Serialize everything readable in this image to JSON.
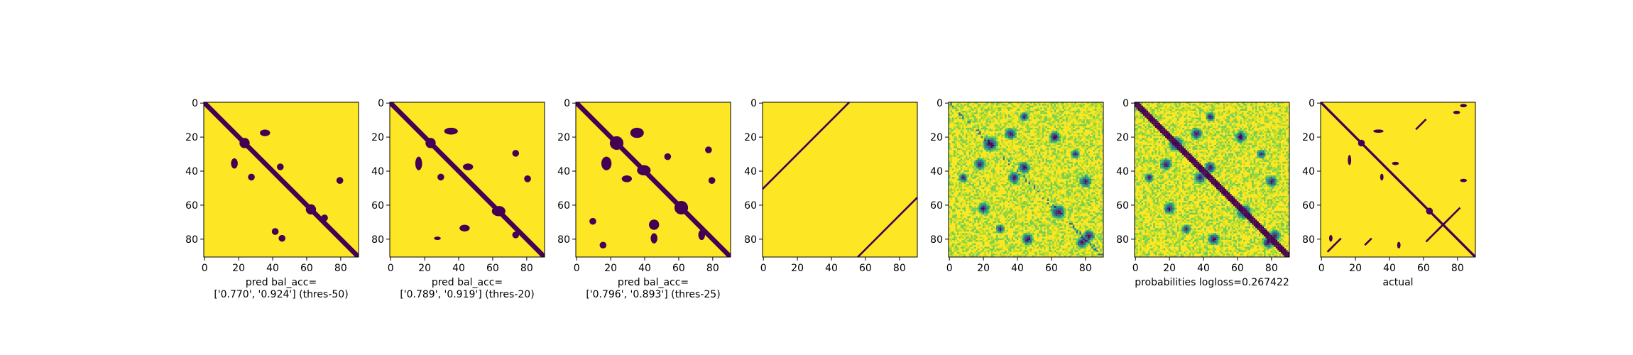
{
  "colors": {
    "background": "#fde725",
    "contact": "#440154",
    "viridis": [
      "#440154",
      "#482878",
      "#3e4989",
      "#31688e",
      "#26828e",
      "#1f9e89",
      "#35b779",
      "#6ece58",
      "#b5de2b",
      "#fde725"
    ]
  },
  "chart_data": [
    {
      "type": "heatmap",
      "variant": "binary_prediction",
      "xlabel": "pred bal_acc=\n['0.770', '0.924'] (thres-50)",
      "xticks": [
        "0",
        "20",
        "40",
        "60",
        "80"
      ],
      "yticks": [
        "0",
        "20",
        "40",
        "60",
        "80"
      ],
      "xlim": [
        0,
        91
      ],
      "ylim": [
        91,
        0
      ],
      "size": 91,
      "diagonal_halfwidth": 2,
      "blobs": [
        {
          "cx": 24,
          "cy": 24,
          "rx": 3,
          "ry": 3
        },
        {
          "cx": 36,
          "cy": 18,
          "rx": 3,
          "ry": 2
        },
        {
          "cx": 18,
          "cy": 36,
          "rx": 2,
          "ry": 3
        },
        {
          "cx": 45,
          "cy": 38,
          "rx": 2,
          "ry": 2
        },
        {
          "cx": 28,
          "cy": 44,
          "rx": 2,
          "ry": 2
        },
        {
          "cx": 63,
          "cy": 63,
          "rx": 3,
          "ry": 3
        },
        {
          "cx": 80,
          "cy": 46,
          "rx": 2,
          "ry": 2
        },
        {
          "cx": 46,
          "cy": 80,
          "rx": 2,
          "ry": 2
        },
        {
          "cx": 42,
          "cy": 76,
          "rx": 2,
          "ry": 2
        },
        {
          "cx": 71,
          "cy": 68,
          "rx": 2,
          "ry": 2
        }
      ]
    },
    {
      "type": "heatmap",
      "variant": "binary_prediction",
      "xlabel": "pred bal_acc=\n['0.789', '0.919'] (thres-20)",
      "xticks": [
        "0",
        "20",
        "40",
        "60",
        "80"
      ],
      "yticks": [
        "0",
        "20",
        "40",
        "60",
        "80"
      ],
      "xlim": [
        0,
        91
      ],
      "ylim": [
        91,
        0
      ],
      "size": 91,
      "diagonal_halfwidth": 2,
      "blobs": [
        {
          "cx": 24,
          "cy": 24,
          "rx": 3,
          "ry": 3
        },
        {
          "cx": 36,
          "cy": 17,
          "rx": 4,
          "ry": 2
        },
        {
          "cx": 17,
          "cy": 36,
          "rx": 2,
          "ry": 4
        },
        {
          "cx": 46,
          "cy": 38,
          "rx": 3,
          "ry": 2
        },
        {
          "cx": 30,
          "cy": 44,
          "rx": 2,
          "ry": 2
        },
        {
          "cx": 64,
          "cy": 64,
          "rx": 4,
          "ry": 3
        },
        {
          "cx": 81,
          "cy": 45,
          "rx": 2,
          "ry": 2
        },
        {
          "cx": 74,
          "cy": 30,
          "rx": 2,
          "ry": 2
        },
        {
          "cx": 44,
          "cy": 74,
          "rx": 3,
          "ry": 2
        },
        {
          "cx": 28,
          "cy": 80,
          "rx": 2,
          "ry": 1
        },
        {
          "cx": 74,
          "cy": 78,
          "rx": 2,
          "ry": 2
        }
      ]
    },
    {
      "type": "heatmap",
      "variant": "binary_prediction",
      "xlabel": "pred bal_acc=\n['0.796', '0.893'] (thres-25)",
      "xticks": [
        "0",
        "20",
        "40",
        "60",
        "80"
      ],
      "yticks": [
        "0",
        "20",
        "40",
        "60",
        "80"
      ],
      "xlim": [
        0,
        91
      ],
      "ylim": [
        91,
        0
      ],
      "size": 91,
      "diagonal_halfwidth": 2,
      "blobs": [
        {
          "cx": 24,
          "cy": 24,
          "rx": 4,
          "ry": 4
        },
        {
          "cx": 36,
          "cy": 18,
          "rx": 4,
          "ry": 3
        },
        {
          "cx": 18,
          "cy": 36,
          "rx": 3,
          "ry": 4
        },
        {
          "cx": 40,
          "cy": 40,
          "rx": 4,
          "ry": 3
        },
        {
          "cx": 30,
          "cy": 45,
          "rx": 3,
          "ry": 2
        },
        {
          "cx": 62,
          "cy": 62,
          "rx": 4,
          "ry": 4
        },
        {
          "cx": 80,
          "cy": 46,
          "rx": 2,
          "ry": 2
        },
        {
          "cx": 46,
          "cy": 80,
          "rx": 2,
          "ry": 3
        },
        {
          "cx": 46,
          "cy": 72,
          "rx": 3,
          "ry": 3
        },
        {
          "cx": 10,
          "cy": 70,
          "rx": 2,
          "ry": 2
        },
        {
          "cx": 78,
          "cy": 28,
          "rx": 2,
          "ry": 2
        },
        {
          "cx": 74,
          "cy": 78,
          "rx": 2,
          "ry": 3
        },
        {
          "cx": 54,
          "cy": 32,
          "rx": 2,
          "ry": 2
        },
        {
          "cx": 16,
          "cy": 84,
          "rx": 2,
          "ry": 2
        }
      ]
    },
    {
      "type": "heatmap",
      "variant": "diagonal_lines",
      "xlabel": "",
      "xticks": [
        "0",
        "20",
        "40",
        "60",
        "80"
      ],
      "yticks": [
        "0",
        "20",
        "40",
        "60",
        "80"
      ],
      "xlim": [
        0,
        91
      ],
      "ylim": [
        91,
        0
      ],
      "size": 91,
      "lines": [
        {
          "x1": 0,
          "y1": 51,
          "x2": 51,
          "y2": 0
        },
        {
          "x1": 56,
          "y1": 91,
          "x2": 91,
          "y2": 56
        }
      ]
    },
    {
      "type": "heatmap",
      "variant": "continuous",
      "xlabel": "",
      "xticks": [
        "0",
        "20",
        "40",
        "60",
        "80"
      ],
      "yticks": [
        "0",
        "20",
        "40",
        "60",
        "80"
      ],
      "xlim": [
        0,
        91
      ],
      "ylim": [
        91,
        0
      ],
      "size": 91,
      "show_diagonal": false
    },
    {
      "type": "heatmap",
      "variant": "continuous",
      "xlabel": "probabilities logloss=0.267422",
      "xticks": [
        "0",
        "20",
        "40",
        "60",
        "80"
      ],
      "yticks": [
        "0",
        "20",
        "40",
        "60",
        "80"
      ],
      "xlim": [
        0,
        91
      ],
      "ylim": [
        91,
        0
      ],
      "size": 91,
      "show_diagonal": true
    },
    {
      "type": "heatmap",
      "variant": "binary_actual",
      "xlabel": "actual",
      "xticks": [
        "0",
        "20",
        "40",
        "60",
        "80"
      ],
      "yticks": [
        "0",
        "20",
        "40",
        "60",
        "80"
      ],
      "xlim": [
        0,
        91
      ],
      "ylim": [
        91,
        0
      ],
      "size": 91,
      "diagonal_halfwidth": 1,
      "blobs": [
        {
          "cx": 24,
          "cy": 24,
          "rx": 2,
          "ry": 2
        },
        {
          "cx": 34,
          "cy": 17,
          "rx": 3,
          "ry": 1
        },
        {
          "cx": 17,
          "cy": 34,
          "rx": 1,
          "ry": 3
        },
        {
          "cx": 44,
          "cy": 36,
          "rx": 2,
          "ry": 1
        },
        {
          "cx": 36,
          "cy": 44,
          "rx": 1,
          "ry": 2
        },
        {
          "cx": 64,
          "cy": 64,
          "rx": 2,
          "ry": 2
        },
        {
          "cx": 84,
          "cy": 46,
          "rx": 2,
          "ry": 1
        },
        {
          "cx": 46,
          "cy": 84,
          "rx": 1,
          "ry": 2
        },
        {
          "cx": 80,
          "cy": 6,
          "rx": 2,
          "ry": 1
        },
        {
          "cx": 6,
          "cy": 80,
          "rx": 1,
          "ry": 2
        },
        {
          "cx": 84,
          "cy": 2,
          "rx": 2,
          "ry": 1
        }
      ],
      "lines": [
        {
          "x1": 62,
          "y1": 82,
          "x2": 76,
          "y2": 68
        },
        {
          "x1": 68,
          "y1": 76,
          "x2": 82,
          "y2": 62
        },
        {
          "x1": 4,
          "y1": 88,
          "x2": 12,
          "y2": 80
        },
        {
          "x1": 26,
          "y1": 84,
          "x2": 30,
          "y2": 80
        },
        {
          "x1": 56,
          "y1": 16,
          "x2": 62,
          "y2": 10
        }
      ]
    }
  ]
}
